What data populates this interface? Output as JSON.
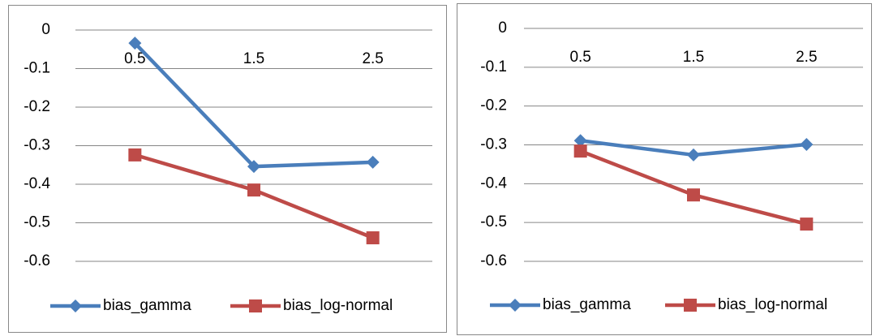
{
  "chart_data": [
    {
      "type": "line",
      "categories": [
        "0.5",
        "1.5",
        "2.5"
      ],
      "series": [
        {
          "name": "bias_gamma",
          "color": "#4a7ebb",
          "marker": "diamond",
          "values": [
            -0.034,
            -0.354,
            -0.343
          ]
        },
        {
          "name": "bias_log-normal",
          "color": "#be4b48",
          "marker": "square",
          "values": [
            -0.324,
            -0.415,
            -0.539
          ]
        }
      ],
      "ylim": [
        -0.6,
        0
      ],
      "yticks": [
        0,
        -0.1,
        -0.2,
        -0.3,
        -0.4,
        -0.5,
        -0.6
      ],
      "grid": true,
      "legend": "bottom"
    },
    {
      "type": "line",
      "categories": [
        "0.5",
        "1.5",
        "2.5"
      ],
      "series": [
        {
          "name": "bias_gamma",
          "color": "#4a7ebb",
          "marker": "diamond",
          "values": [
            -0.289,
            -0.326,
            -0.299
          ]
        },
        {
          "name": "bias_log-normal",
          "color": "#be4b48",
          "marker": "square",
          "values": [
            -0.316,
            -0.429,
            -0.504
          ]
        }
      ],
      "ylim": [
        -0.6,
        0
      ],
      "yticks": [
        0,
        -0.1,
        -0.2,
        -0.3,
        -0.4,
        -0.5,
        -0.6
      ],
      "grid": true,
      "legend": "bottom"
    }
  ]
}
